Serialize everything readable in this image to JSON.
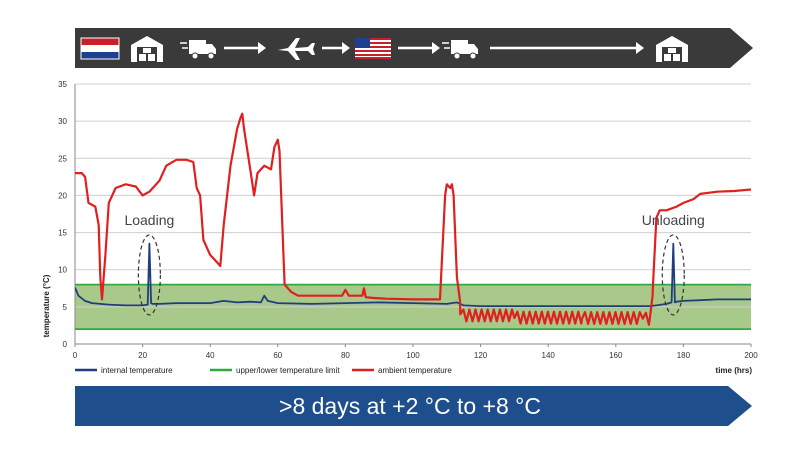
{
  "route_banner": {
    "steps": [
      "netherlands-flag",
      "warehouse-icon",
      "delivery-truck-icon",
      "arrow-right",
      "airplane-icon",
      "arrow-right",
      "usa-flag",
      "arrow-right",
      "delivery-truck-icon",
      "arrow-right",
      "warehouse-icon"
    ],
    "color": "#3a3a3a"
  },
  "summary_banner": {
    "text": ">8 days at +2 °C to +8 °C",
    "color": "#1f4e8c"
  },
  "chart_data": {
    "type": "line",
    "xlabel": "time (hrs)",
    "ylabel": "temperature (°C)",
    "xlim": [
      0,
      200
    ],
    "ylim": [
      0,
      35
    ],
    "xticks": [
      0,
      20,
      40,
      60,
      80,
      100,
      120,
      140,
      160,
      180,
      200
    ],
    "yticks": [
      0,
      5,
      10,
      15,
      20,
      25,
      30,
      35
    ],
    "grid": true,
    "legend_position": "bottom",
    "band": {
      "lower": 2,
      "upper": 8,
      "fill": "#a9c98a"
    },
    "series": [
      {
        "name": "internal temperature",
        "color": "#1f3f7a",
        "x": [
          0,
          1,
          3,
          5,
          10,
          15,
          20,
          21.5,
          22,
          22.5,
          23,
          25,
          30,
          40,
          44,
          48,
          52,
          55,
          56,
          57,
          60,
          70,
          80,
          90,
          100,
          110,
          113,
          115,
          120,
          130,
          140,
          150,
          160,
          170,
          172,
          175,
          176.5,
          177,
          177.5,
          178,
          180,
          185,
          190,
          200
        ],
        "y": [
          7.6,
          6.5,
          5.8,
          5.5,
          5.3,
          5.2,
          5.2,
          5.3,
          13.5,
          5.5,
          5.4,
          5.4,
          5.5,
          5.5,
          5.8,
          5.6,
          5.7,
          5.6,
          6.5,
          5.8,
          5.5,
          5.4,
          5.5,
          5.6,
          5.5,
          5.4,
          5.6,
          5.2,
          5.1,
          5.1,
          5.1,
          5.1,
          5.1,
          5.1,
          5.2,
          5.4,
          5.6,
          13.5,
          5.6,
          5.7,
          5.8,
          5.9,
          6.0,
          6.0
        ]
      },
      {
        "name": "upper/lower temperature limit",
        "color": "#2eaa3f",
        "x": [
          0,
          200
        ],
        "y": [
          8,
          8
        ],
        "y2": [
          2,
          2
        ]
      },
      {
        "name": "ambient temperature",
        "color": "#e02020",
        "x": [
          0,
          2,
          3,
          4,
          6,
          7,
          7.5,
          8,
          9,
          10,
          12,
          15,
          18,
          20,
          22,
          25,
          27,
          30,
          33,
          35,
          36,
          37,
          38,
          40,
          42,
          43,
          44,
          46,
          48,
          49,
          49.5,
          50,
          52,
          53,
          54,
          55,
          56,
          58,
          59,
          60,
          60.5,
          61,
          62,
          64,
          66,
          70,
          79,
          80,
          81,
          85,
          85.5,
          86,
          88,
          92,
          100,
          108,
          109.5,
          110,
          111,
          111.5,
          112,
          113,
          114,
          130,
          150,
          168,
          170,
          171,
          172,
          173,
          175,
          178,
          180,
          183,
          185,
          190,
          195,
          200
        ],
        "y": [
          23,
          23,
          22.5,
          19,
          18.5,
          16,
          9,
          6,
          12,
          19,
          21,
          21.5,
          21.2,
          20,
          20.5,
          22,
          24,
          24.8,
          24.8,
          24.5,
          21,
          20,
          14,
          12,
          11,
          10.5,
          16,
          24,
          29,
          30.5,
          31,
          29,
          23,
          20,
          23,
          23.5,
          24,
          23.5,
          26.5,
          27.5,
          26,
          20,
          8,
          7,
          6.5,
          6.5,
          6.5,
          7.3,
          6.5,
          6.5,
          7.5,
          6.3,
          6.2,
          6.1,
          6.0,
          6.0,
          20,
          21.5,
          21,
          21.5,
          20,
          9,
          4,
          3.5,
          3.4,
          3.4,
          3.2,
          8,
          17,
          18,
          18,
          18.5,
          19,
          19.5,
          20.2,
          20.5,
          20.6,
          20.8
        ]
      }
    ],
    "annotations": [
      {
        "text": "Loading",
        "x": 22,
        "y": 16
      },
      {
        "text": "Unloading",
        "x": 177,
        "y": 16
      }
    ]
  }
}
